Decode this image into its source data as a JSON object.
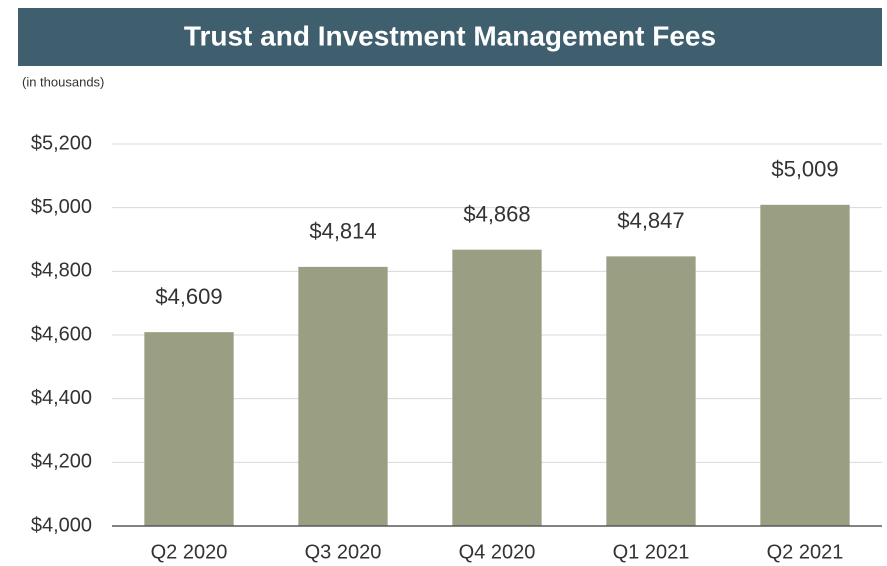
{
  "chart_data": {
    "type": "bar",
    "title": "Trust and Investment Management Fees",
    "subtitle": "(in thousands)",
    "categories": [
      "Q2 2020",
      "Q3 2020",
      "Q4 2020",
      "Q1 2021",
      "Q2 2021"
    ],
    "values": [
      4609,
      4814,
      4868,
      4847,
      5009
    ],
    "value_labels": [
      "$4,609",
      "$4,814",
      "$4,868",
      "$4,847",
      "$5,009"
    ],
    "color": "#9a9f84",
    "ylim": [
      4000,
      5200
    ],
    "yticks": [
      {
        "value": 4000,
        "label": "$4,000"
      },
      {
        "value": 4200,
        "label": "$4,200"
      },
      {
        "value": 4400,
        "label": "$4,400"
      },
      {
        "value": 4600,
        "label": "$4,600"
      },
      {
        "value": 4800,
        "label": "$4,800"
      },
      {
        "value": 5000,
        "label": "$5,000"
      },
      {
        "value": 5200,
        "label": "$5,200"
      }
    ],
    "grid": true
  }
}
